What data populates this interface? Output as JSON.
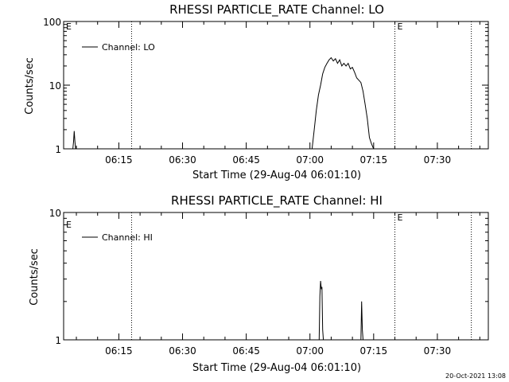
{
  "chart_data": [
    {
      "type": "line",
      "title": "RHESSI PARTICLE_RATE Channel: LO",
      "xlabel": "Start Time (29-Aug-04 06:01:10)",
      "ylabel": "Counts/sec",
      "y_scale": "log",
      "ylim": [
        1,
        100
      ],
      "y_ticks": [
        {
          "value": 1,
          "label": "1"
        },
        {
          "value": 10,
          "label": "10"
        },
        {
          "value": 100,
          "label": "100"
        }
      ],
      "xlim": [
        "06:02",
        "07:42"
      ],
      "x_ticks": [
        "06:15",
        "06:30",
        "06:45",
        "07:00",
        "07:15",
        "07:30"
      ],
      "grid": false,
      "legend": {
        "position": "top-left",
        "entries": [
          "Channel: LO"
        ]
      },
      "markers": [
        {
          "x": "06:18",
          "label": ""
        },
        {
          "x": "07:20",
          "label": "E"
        },
        {
          "x": "07:38",
          "label": ""
        }
      ],
      "corner_label": "E",
      "series": [
        {
          "name": "Channel: LO",
          "x": [
            "06:04:10",
            "06:04:20",
            "06:04:30",
            "06:04:40",
            "06:04:50",
            "07:00:30",
            "07:01:00",
            "07:01:30",
            "07:02:00",
            "07:02:30",
            "07:03:00",
            "07:03:30",
            "07:04:00",
            "07:04:30",
            "07:05:00",
            "07:05:30",
            "07:06:00",
            "07:06:30",
            "07:07:00",
            "07:07:30",
            "07:08:00",
            "07:08:30",
            "07:09:00",
            "07:09:30",
            "07:10:00",
            "07:10:30",
            "07:11:00",
            "07:11:30",
            "07:12:00",
            "07:12:30",
            "07:13:00",
            "07:13:30",
            "07:14:00",
            "07:14:30",
            "07:15:00"
          ],
          "y": [
            1,
            1.3,
            1.9,
            1.3,
            1,
            1,
            2,
            4,
            7,
            10,
            15,
            19,
            22,
            25,
            27,
            24,
            26,
            22,
            25,
            20,
            22,
            20,
            22,
            18,
            19,
            16,
            13,
            12,
            11,
            8,
            5,
            3,
            1.5,
            1.2,
            1
          ]
        }
      ]
    },
    {
      "type": "line",
      "title": "RHESSI PARTICLE_RATE Channel: HI",
      "xlabel": "Start Time (29-Aug-04 06:01:10)",
      "ylabel": "Counts/sec",
      "y_scale": "log",
      "ylim": [
        1,
        10
      ],
      "y_ticks": [
        {
          "value": 1,
          "label": "1"
        },
        {
          "value": 10,
          "label": "10"
        }
      ],
      "xlim": [
        "06:02",
        "07:42"
      ],
      "x_ticks": [
        "06:15",
        "06:30",
        "06:45",
        "07:00",
        "07:15",
        "07:30"
      ],
      "grid": false,
      "legend": {
        "position": "top-left",
        "entries": [
          "Channel: HI"
        ]
      },
      "markers": [
        {
          "x": "06:18",
          "label": ""
        },
        {
          "x": "07:20",
          "label": "E"
        },
        {
          "x": "07:38",
          "label": ""
        }
      ],
      "corner_label": "E",
      "series": [
        {
          "name": "Channel: HI",
          "x": [
            "07:02:00",
            "07:02:10",
            "07:02:20",
            "07:02:30",
            "07:02:40",
            "07:02:50",
            "07:03:00",
            "07:03:10",
            "07:03:20",
            "07:12:00",
            "07:12:10",
            "07:12:20",
            "07:12:30",
            "07:12:40"
          ],
          "y": [
            1,
            1,
            2.2,
            2.9,
            2.5,
            2.6,
            1.2,
            1,
            1,
            1,
            2.0,
            1.2,
            1,
            1
          ]
        }
      ]
    }
  ],
  "footer": {
    "timestamp": "20-Oct-2021 13:08"
  }
}
